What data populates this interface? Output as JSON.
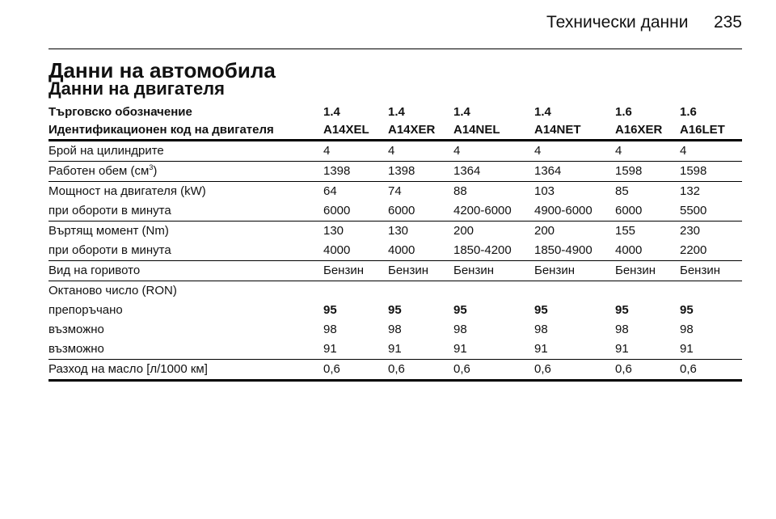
{
  "header": {
    "section": "Технически данни",
    "page_number": "235"
  },
  "title": "Данни на автомобила",
  "subtitle": "Данни на двигателя",
  "table": {
    "header_rows": [
      {
        "label": "Търговско обозначение",
        "values": [
          "1.4",
          "1.4",
          "1.4",
          "1.4",
          "1.6",
          "1.6"
        ]
      },
      {
        "label": "Идентификационен код на двигателя",
        "values": [
          "A14XEL",
          "A14XER",
          "A14NEL",
          "A14NET",
          "A16XER",
          "A16LET"
        ]
      }
    ],
    "groups": [
      {
        "rows": [
          {
            "label": "Брой на цилиндрите",
            "values": [
              "4",
              "4",
              "4",
              "4",
              "4",
              "4"
            ]
          }
        ]
      },
      {
        "rows": [
          {
            "label": "Работен обем (см",
            "label_sup": "3",
            "label_end": ")",
            "values": [
              "1398",
              "1398",
              "1364",
              "1364",
              "1598",
              "1598"
            ]
          }
        ]
      },
      {
        "rows": [
          {
            "label": "Мощност на двигателя (kW)",
            "values": [
              "64",
              "74",
              "88",
              "103",
              "85",
              "132"
            ]
          },
          {
            "label": "при обороти в минута",
            "values": [
              "6000",
              "6000",
              "4200-6000",
              "4900-6000",
              "6000",
              "5500"
            ]
          }
        ]
      },
      {
        "rows": [
          {
            "label": "Въртящ момент (Nm)",
            "values": [
              "130",
              "130",
              "200",
              "200",
              "155",
              "230"
            ]
          },
          {
            "label": "при обороти в минута",
            "values": [
              "4000",
              "4000",
              "1850-4200",
              "1850-4900",
              "4000",
              "2200"
            ]
          }
        ]
      },
      {
        "rows": [
          {
            "label": "Вид на горивото",
            "values": [
              "Бензин",
              "Бензин",
              "Бензин",
              "Бензин",
              "Бензин",
              "Бензин"
            ]
          }
        ]
      },
      {
        "rows": [
          {
            "label": "Октаново число (RON)",
            "values": []
          },
          {
            "label": "препоръчано",
            "values": [
              "95",
              "95",
              "95",
              "95",
              "95",
              "95"
            ],
            "bold": true
          },
          {
            "label": "възможно",
            "values": [
              "98",
              "98",
              "98",
              "98",
              "98",
              "98"
            ]
          },
          {
            "label": "възможно",
            "values": [
              "91",
              "91",
              "91",
              "91",
              "91",
              "91"
            ]
          }
        ]
      },
      {
        "rows": [
          {
            "label": "Разход на масло [л/1000 км]",
            "values": [
              "0,6",
              "0,6",
              "0,6",
              "0,6",
              "0,6",
              "0,6"
            ]
          }
        ]
      }
    ]
  }
}
